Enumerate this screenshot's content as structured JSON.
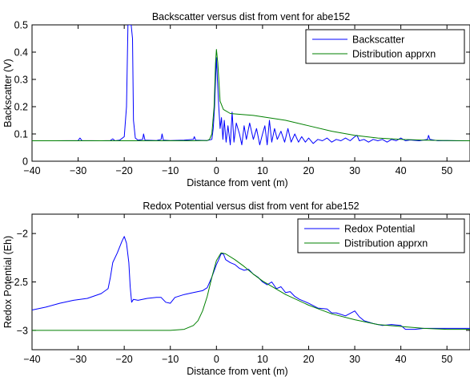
{
  "chart_data": [
    {
      "type": "line",
      "title": "Backscatter versus dist from vent for abe152",
      "xlabel": "Distance from vent (m)",
      "ylabel": "Backscatter (V)",
      "xlim": [
        -40,
        55
      ],
      "ylim": [
        0,
        0.5
      ],
      "xticks": [
        -40,
        -30,
        -20,
        -10,
        0,
        10,
        20,
        30,
        40,
        50
      ],
      "xtick_labels": [
        "−40",
        "−30",
        "−20",
        "−10",
        "0",
        "10",
        "20",
        "30",
        "40",
        "50"
      ],
      "yticks": [
        0,
        0.1,
        0.2,
        0.3,
        0.4,
        0.5
      ],
      "ytick_labels": [
        "0",
        "0.1",
        "0.2",
        "0.3",
        "0.4",
        "0.5"
      ],
      "grid": false,
      "legend_position": "top-right",
      "series": [
        {
          "name": "Backscatter",
          "color": "#0000ff",
          "points": [
            [
              -40,
              0.075
            ],
            [
              -35,
              0.075
            ],
            [
              -30,
              0.076
            ],
            [
              -29.6,
              0.085
            ],
            [
              -29.2,
              0.076
            ],
            [
              -25,
              0.075
            ],
            [
              -23,
              0.076
            ],
            [
              -22.5,
              0.082
            ],
            [
              -22,
              0.075
            ],
            [
              -21,
              0.077
            ],
            [
              -20,
              0.09
            ],
            [
              -19.5,
              0.2
            ],
            [
              -19.2,
              0.5
            ],
            [
              -18.5,
              0.5
            ],
            [
              -18.2,
              0.45
            ],
            [
              -18,
              0.15
            ],
            [
              -17.6,
              0.085
            ],
            [
              -17,
              0.077
            ],
            [
              -16,
              0.08
            ],
            [
              -15.8,
              0.1
            ],
            [
              -15.5,
              0.077
            ],
            [
              -13,
              0.076
            ],
            [
              -12,
              0.08
            ],
            [
              -11.8,
              0.1
            ],
            [
              -11.5,
              0.077
            ],
            [
              -10,
              0.076
            ],
            [
              -7,
              0.077
            ],
            [
              -5,
              0.08
            ],
            [
              -4.8,
              0.09
            ],
            [
              -4.5,
              0.077
            ],
            [
              -2,
              0.076
            ],
            [
              -1,
              0.08
            ],
            [
              -0.7,
              0.12
            ],
            [
              -0.4,
              0.2
            ],
            [
              -0.2,
              0.3
            ],
            [
              0,
              0.38
            ],
            [
              0.2,
              0.3
            ],
            [
              0.5,
              0.2
            ],
            [
              0.8,
              0.12
            ],
            [
              1.1,
              0.16
            ],
            [
              1.4,
              0.08
            ],
            [
              1.7,
              0.15
            ],
            [
              2.1,
              0.07
            ],
            [
              2.5,
              0.13
            ],
            [
              3,
              0.06
            ],
            [
              3.4,
              0.18
            ],
            [
              3.8,
              0.07
            ],
            [
              4.3,
              0.14
            ],
            [
              5,
              0.1
            ],
            [
              5.5,
              0.06
            ],
            [
              6,
              0.13
            ],
            [
              6.5,
              0.08
            ],
            [
              7.2,
              0.14
            ],
            [
              8,
              0.08
            ],
            [
              8.7,
              0.12
            ],
            [
              9.4,
              0.06
            ],
            [
              10,
              0.1
            ],
            [
              10.5,
              0.13
            ],
            [
              11,
              0.06
            ],
            [
              11.5,
              0.15
            ],
            [
              12,
              0.07
            ],
            [
              12.6,
              0.12
            ],
            [
              13.2,
              0.08
            ],
            [
              14,
              0.11
            ],
            [
              14.8,
              0.07
            ],
            [
              15.5,
              0.12
            ],
            [
              16.2,
              0.07
            ],
            [
              17,
              0.1
            ],
            [
              17.8,
              0.07
            ],
            [
              18.5,
              0.09
            ],
            [
              19.3,
              0.07
            ],
            [
              20,
              0.085
            ],
            [
              21,
              0.065
            ],
            [
              22,
              0.08
            ],
            [
              23,
              0.075
            ],
            [
              24,
              0.085
            ],
            [
              25,
              0.07
            ],
            [
              26,
              0.08
            ],
            [
              27,
              0.075
            ],
            [
              28,
              0.085
            ],
            [
              29,
              0.075
            ],
            [
              30,
              0.09
            ],
            [
              30.5,
              0.095
            ],
            [
              31,
              0.075
            ],
            [
              32,
              0.08
            ],
            [
              33,
              0.07
            ],
            [
              34,
              0.08
            ],
            [
              35,
              0.075
            ],
            [
              36,
              0.08
            ],
            [
              37,
              0.07
            ],
            [
              38,
              0.08
            ],
            [
              39,
              0.075
            ],
            [
              40,
              0.085
            ],
            [
              41,
              0.075
            ],
            [
              42,
              0.078
            ],
            [
              44,
              0.075
            ],
            [
              45.8,
              0.08
            ],
            [
              46,
              0.095
            ],
            [
              46.3,
              0.08
            ],
            [
              48,
              0.075
            ],
            [
              50,
              0.076
            ],
            [
              52,
              0.075
            ],
            [
              55,
              0.075
            ]
          ]
        },
        {
          "name": "Distribution apprxn",
          "color": "#008000",
          "points": [
            [
              -40,
              0.075
            ],
            [
              -20,
              0.075
            ],
            [
              -5,
              0.075
            ],
            [
              -2,
              0.076
            ],
            [
              -1.5,
              0.08
            ],
            [
              -1,
              0.1
            ],
            [
              -0.5,
              0.2
            ],
            [
              -0.2,
              0.36
            ],
            [
              0,
              0.41
            ],
            [
              0.3,
              0.36
            ],
            [
              0.8,
              0.22
            ],
            [
              1.5,
              0.19
            ],
            [
              3,
              0.175
            ],
            [
              5,
              0.172
            ],
            [
              8,
              0.168
            ],
            [
              10,
              0.163
            ],
            [
              15,
              0.15
            ],
            [
              20,
              0.13
            ],
            [
              25,
              0.11
            ],
            [
              30,
              0.095
            ],
            [
              35,
              0.085
            ],
            [
              40,
              0.08
            ],
            [
              45,
              0.077
            ],
            [
              50,
              0.076
            ],
            [
              55,
              0.075
            ]
          ]
        }
      ]
    },
    {
      "type": "line",
      "title": "Redox Potential versus dist from vent for abe152",
      "xlabel": "Distance from vent (m)",
      "ylabel": "Redox Potential (Eh)",
      "xlim": [
        -40,
        55
      ],
      "ylim": [
        -3.2,
        -1.8
      ],
      "xticks": [
        -40,
        -30,
        -20,
        -10,
        0,
        10,
        20,
        30,
        40,
        50
      ],
      "xtick_labels": [
        "−40",
        "−30",
        "−20",
        "−10",
        "0",
        "10",
        "20",
        "30",
        "40",
        "50"
      ],
      "yticks": [
        -3,
        -2.5,
        -2
      ],
      "ytick_labels": [
        "−3",
        "−2.5",
        "−2"
      ],
      "grid": false,
      "legend_position": "top-right",
      "series": [
        {
          "name": "Redox Potential",
          "color": "#0000ff",
          "points": [
            [
              -40,
              -2.79
            ],
            [
              -37,
              -2.76
            ],
            [
              -34,
              -2.72
            ],
            [
              -31,
              -2.69
            ],
            [
              -28,
              -2.67
            ],
            [
              -25,
              -2.62
            ],
            [
              -23.5,
              -2.57
            ],
            [
              -23,
              -2.45
            ],
            [
              -22.5,
              -2.3
            ],
            [
              -21.5,
              -2.2
            ],
            [
              -20.5,
              -2.08
            ],
            [
              -20,
              -2.03
            ],
            [
              -19.5,
              -2.1
            ],
            [
              -19,
              -2.3
            ],
            [
              -18.7,
              -2.55
            ],
            [
              -18.4,
              -2.71
            ],
            [
              -18,
              -2.68
            ],
            [
              -17,
              -2.69
            ],
            [
              -15,
              -2.67
            ],
            [
              -13,
              -2.66
            ],
            [
              -12,
              -2.66
            ],
            [
              -11,
              -2.71
            ],
            [
              -10,
              -2.72
            ],
            [
              -9,
              -2.66
            ],
            [
              -7,
              -2.63
            ],
            [
              -5,
              -2.61
            ],
            [
              -3,
              -2.59
            ],
            [
              -2,
              -2.56
            ],
            [
              -1,
              -2.45
            ],
            [
              0,
              -2.32
            ],
            [
              0.5,
              -2.27
            ],
            [
              1,
              -2.21
            ],
            [
              1.5,
              -2.21
            ],
            [
              2,
              -2.27
            ],
            [
              3,
              -2.3
            ],
            [
              4,
              -2.32
            ],
            [
              5,
              -2.36
            ],
            [
              6,
              -2.38
            ],
            [
              7,
              -2.37
            ],
            [
              8,
              -2.42
            ],
            [
              9,
              -2.45
            ],
            [
              10,
              -2.5
            ],
            [
              11,
              -2.53
            ],
            [
              12,
              -2.5
            ],
            [
              13,
              -2.57
            ],
            [
              14,
              -2.55
            ],
            [
              15,
              -2.61
            ],
            [
              16,
              -2.6
            ],
            [
              17,
              -2.65
            ],
            [
              18,
              -2.68
            ],
            [
              19,
              -2.7
            ],
            [
              20,
              -2.72
            ],
            [
              22,
              -2.77
            ],
            [
              24,
              -2.78
            ],
            [
              25,
              -2.82
            ],
            [
              26,
              -2.82
            ],
            [
              28,
              -2.85
            ],
            [
              30,
              -2.8
            ],
            [
              31,
              -2.86
            ],
            [
              32,
              -2.9
            ],
            [
              34,
              -2.93
            ],
            [
              36,
              -2.95
            ],
            [
              38,
              -2.94
            ],
            [
              40,
              -2.95
            ],
            [
              41,
              -2.99
            ],
            [
              43,
              -2.99
            ],
            [
              45,
              -2.98
            ],
            [
              50,
              -2.98
            ],
            [
              55,
              -2.98
            ]
          ]
        },
        {
          "name": "Distribution apprxn",
          "color": "#008000",
          "points": [
            [
              -40,
              -3
            ],
            [
              -20,
              -3
            ],
            [
              -10,
              -3
            ],
            [
              -7,
              -2.99
            ],
            [
              -5,
              -2.95
            ],
            [
              -4,
              -2.9
            ],
            [
              -3,
              -2.8
            ],
            [
              -2,
              -2.65
            ],
            [
              -1,
              -2.45
            ],
            [
              0,
              -2.28
            ],
            [
              1,
              -2.2
            ],
            [
              2,
              -2.21
            ],
            [
              4,
              -2.27
            ],
            [
              6,
              -2.34
            ],
            [
              8,
              -2.42
            ],
            [
              10,
              -2.49
            ],
            [
              15,
              -2.63
            ],
            [
              20,
              -2.74
            ],
            [
              25,
              -2.83
            ],
            [
              30,
              -2.89
            ],
            [
              35,
              -2.94
            ],
            [
              40,
              -2.96
            ],
            [
              45,
              -2.98
            ],
            [
              50,
              -2.99
            ],
            [
              55,
              -2.99
            ]
          ]
        }
      ]
    }
  ]
}
